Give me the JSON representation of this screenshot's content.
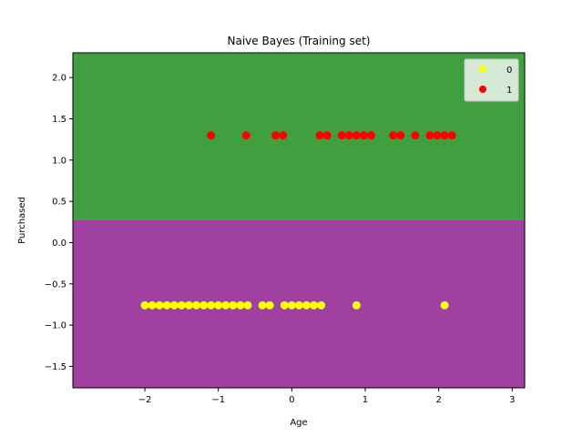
{
  "chart_data": {
    "type": "scatter",
    "title": "Naive Bayes (Training set)",
    "xlabel": "Age",
    "ylabel": "Purchased",
    "xlim": [
      -2.98,
      3.17
    ],
    "ylim": [
      -1.76,
      2.3
    ],
    "xticks": [
      -2,
      -1,
      0,
      1,
      2,
      3
    ],
    "yticks": [
      -1.5,
      -1.0,
      -0.5,
      0.0,
      0.5,
      1.0,
      1.5,
      2.0
    ],
    "xtick_labels": [
      "−2",
      "−1",
      "0",
      "1",
      "2",
      "3"
    ],
    "ytick_labels": [
      "−1.5",
      "−1.0",
      "−0.5",
      "0.0",
      "0.5",
      "1.0",
      "1.5",
      "2.0"
    ],
    "decision_boundary_y": 0.27,
    "regions": [
      {
        "name": "class-0-region",
        "color": "#a040a0",
        "from": -1.76,
        "to": 0.27
      },
      {
        "name": "class-1-region",
        "color": "#40a040",
        "from": 0.27,
        "to": 2.3
      }
    ],
    "legend_placement": "top-right",
    "series": [
      {
        "name": "0",
        "color": "#ffff00",
        "y": -0.76,
        "x": [
          -2.0,
          -1.9,
          -1.8,
          -1.7,
          -1.6,
          -1.5,
          -1.4,
          -1.3,
          -1.2,
          -1.1,
          -1.0,
          -0.9,
          -0.8,
          -0.7,
          -0.6,
          -0.4,
          -0.3,
          -0.1,
          0.0,
          0.1,
          0.2,
          0.3,
          0.4,
          0.88,
          2.08
        ]
      },
      {
        "name": "1",
        "color": "#ff0000",
        "y": 1.3,
        "x": [
          -1.1,
          -0.62,
          -0.22,
          -0.12,
          0.38,
          0.48,
          0.68,
          0.78,
          0.88,
          0.98,
          1.08,
          1.38,
          1.48,
          1.68,
          1.88,
          1.98,
          2.08,
          2.18
        ]
      }
    ]
  }
}
